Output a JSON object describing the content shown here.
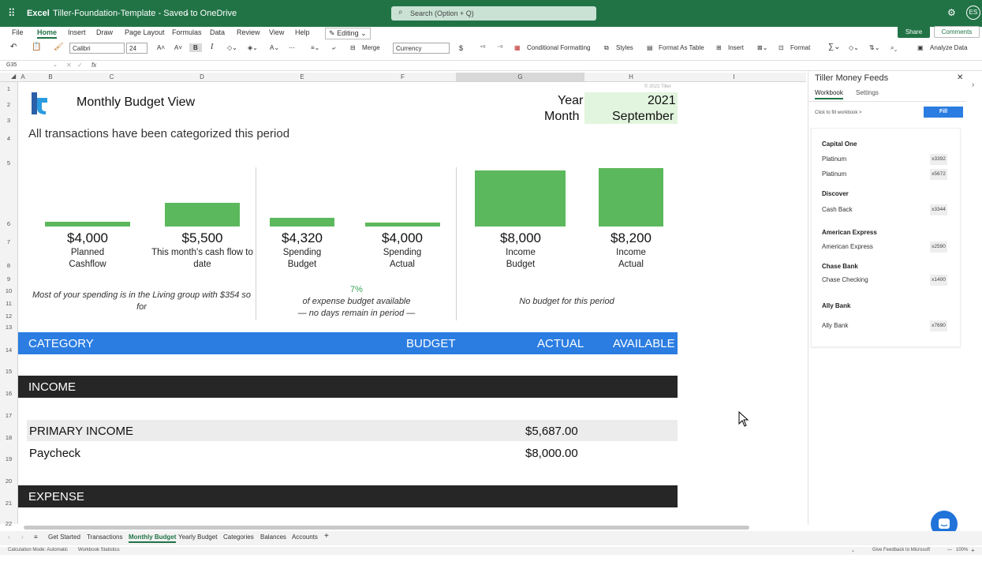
{
  "app": {
    "name": "Excel",
    "doc_title": "Tiller-Foundation-Template - Saved to OneDrive",
    "search_placeholder": "Search (Option + Q)",
    "user_initials": "ES",
    "share": "Share",
    "comments": "Comments"
  },
  "menu": [
    "File",
    "Home",
    "Insert",
    "Draw",
    "Page Layout",
    "Formulas",
    "Data",
    "Review",
    "View",
    "Help"
  ],
  "menu_active": "Home",
  "editing": "Editing",
  "toolbar": {
    "font": "Calibri",
    "size": "24",
    "bold": "B",
    "italic": "I",
    "merge": "Merge",
    "number_format": "Currency",
    "currency_sym": "$",
    "conditional": "Conditional Formatting",
    "styles": "Styles",
    "format_table": "Format As Table",
    "insert": "Insert",
    "format": "Format",
    "analyze": "Analyze Data"
  },
  "formula": {
    "cell_ref": "G35",
    "fx": "fx"
  },
  "columns": [
    "A",
    "B",
    "C",
    "D",
    "E",
    "F",
    "G",
    "H",
    "I"
  ],
  "rows": [
    "1",
    "2",
    "3",
    "4",
    "5",
    "6",
    "7",
    "8",
    "9",
    "10",
    "11",
    "12",
    "13",
    "14",
    "15",
    "16",
    "17",
    "18",
    "19",
    "20",
    "21",
    "22"
  ],
  "sheet": {
    "copyright": "© 2022 Tiller",
    "title": "Monthly Budget View",
    "year_label": "Year",
    "year_value": "2021",
    "month_label": "Month",
    "month_value": "September",
    "status_line": "All transactions have been categorized this period",
    "kpis": [
      {
        "value": "$4,000",
        "label1": "Planned",
        "label2": "Cashflow",
        "level": 0.08
      },
      {
        "value": "$5,500",
        "label1": "This month's cash flow to",
        "label2": "date",
        "level": 0.41
      },
      {
        "value": "$4,320",
        "label1": "Spending",
        "label2": "Budget",
        "level": 0.15
      },
      {
        "value": "$4,000",
        "label1": "Spending",
        "label2": "Actual",
        "level": 0.07
      },
      {
        "value": "$8,000",
        "label1": "Income",
        "label2": "Budget",
        "level": 0.96
      },
      {
        "value": "$8,200",
        "label1": "Income",
        "label2": "Actual",
        "level": 1.0
      }
    ],
    "note_spending": "Most of your spending is in the Living group with $354 so",
    "note_spending2": "for",
    "pct_available": "7%",
    "note_budget": "of expense budget available",
    "note_days": "— no days remain in period —",
    "note_income": "No budget for this period",
    "header": {
      "category": "CATEGORY",
      "budget": "BUDGET",
      "actual": "ACTUAL",
      "available": "AVAILABLE"
    },
    "income": "INCOME",
    "primary_income": "PRIMARY INCOME",
    "primary_income_actual": "$5,687.00",
    "paycheck": "Paycheck",
    "paycheck_actual": "$8,000.00",
    "expense": "EXPENSE"
  },
  "panel": {
    "title": "Tiller Money Feeds",
    "tab_workbook": "Workbook",
    "tab_settings": "Settings",
    "fill_hint": "Click to fill workbook >",
    "fill_button": "Fill",
    "banks": [
      {
        "name": "Capital One",
        "accounts": [
          {
            "name": "Platinum",
            "num": "x3392"
          },
          {
            "name": "Platinum",
            "num": "x5672"
          }
        ]
      },
      {
        "name": "Discover",
        "accounts": [
          {
            "name": "Cash Back",
            "num": "x3344"
          }
        ]
      },
      {
        "name": "American Express",
        "accounts": [
          {
            "name": "American Express",
            "num": "x2590"
          }
        ]
      },
      {
        "name": "Chase Bank",
        "accounts": [
          {
            "name": "Chase Checking",
            "num": "x1400"
          }
        ]
      },
      {
        "name": "Ally Bank",
        "accounts": [
          {
            "name": "Ally Bank",
            "num": "x7690"
          }
        ]
      }
    ]
  },
  "tabs": [
    "Get Started",
    "Transactions",
    "Monthly Budget",
    "Yearly Budget",
    "Categories",
    "Balances",
    "Accounts"
  ],
  "tab_active": "Monthly Budget",
  "status": {
    "calc": "Calculation Mode: Automatic",
    "stats": "Workbook Statistics",
    "feedback": "Give Feedback to Microsoft",
    "zoom": "100%"
  },
  "colors": {
    "excel_green": "#217346",
    "bar_green": "#5cb85c",
    "header_blue": "#2b7de1",
    "band_dark": "#262626",
    "highlight": "#e2f5de"
  }
}
